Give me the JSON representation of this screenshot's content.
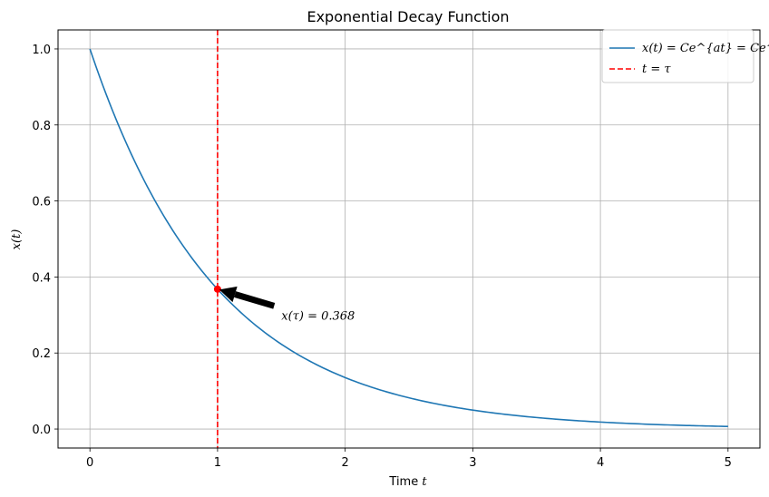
{
  "chart_data": {
    "type": "line",
    "title": "Exponential Decay Function",
    "xlabel_prefix": "Time ",
    "xlabel_var": "t",
    "ylabel": "x(t)",
    "xlim": [
      -0.25,
      5.25
    ],
    "ylim": [
      -0.05,
      1.05
    ],
    "xticks": [
      0,
      1,
      2,
      3,
      4,
      5
    ],
    "xtick_labels": [
      "0",
      "1",
      "2",
      "3",
      "4",
      "5"
    ],
    "yticks": [
      0.0,
      0.2,
      0.4,
      0.6,
      0.8,
      1.0
    ],
    "ytick_labels": [
      "0.0",
      "0.2",
      "0.4",
      "0.6",
      "0.8",
      "1.0"
    ],
    "grid": true,
    "legend_position": "top-right",
    "series": [
      {
        "name": "x(t) = Ce^{at} = Ce^{-t/τ}",
        "kind": "curve",
        "function": "exp(-t)",
        "x_range": [
          0,
          5
        ],
        "color": "#1f77b4"
      },
      {
        "name": "t = τ",
        "kind": "vline",
        "x": 1,
        "style": "dashed",
        "color": "#ff0000"
      }
    ],
    "point": {
      "x": 1,
      "y": 0.368,
      "color": "#ff0000"
    },
    "annotation": {
      "text": "x(τ) = 0.368",
      "xy": [
        1,
        0.368
      ],
      "xytext": [
        1.5,
        0.3
      ]
    }
  }
}
